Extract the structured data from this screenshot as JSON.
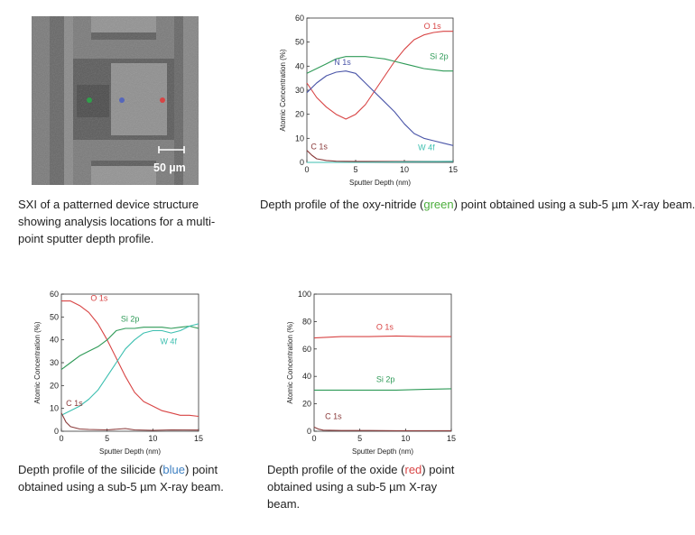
{
  "sxi_image": {
    "scale_label": "50 µm",
    "caption": "SXI of a patterned device structure showing analysis locations for a multi-point sputter depth profile.",
    "points": [
      {
        "name": "green",
        "color": "#2fa04a"
      },
      {
        "name": "blue",
        "color": "#5566bb"
      },
      {
        "name": "red",
        "color": "#d84444"
      }
    ]
  },
  "captions": [
    {
      "pre": "Depth profile of the oxy-nitride (",
      "color_word": "green",
      "color": "#4cae3c",
      "post": ") point obtained using a sub-5 µm X-ray beam."
    },
    {
      "pre": "Depth profile of the silicide (",
      "color_word": "blue",
      "color": "#3d7fc1",
      "post": ") point obtained using a sub-5 µm X-ray beam."
    },
    {
      "pre": "Depth profile of the oxide (",
      "color_word": "red",
      "color": "#d84444",
      "post": ") point obtained using a sub-5 µm X-ray beam."
    }
  ],
  "chart_data": [
    {
      "type": "line",
      "xlabel": "Sputter Depth (nm)",
      "ylabel": "Atomic Concentration (%)",
      "xlim": [
        0,
        15
      ],
      "ylim": [
        0,
        60
      ],
      "xticks": [
        0,
        5,
        10,
        15
      ],
      "yticks": [
        0,
        10,
        20,
        30,
        40,
        50,
        60
      ],
      "grid": false,
      "series": [
        {
          "name": "O 1s",
          "color": "#d84444",
          "x": [
            0,
            1,
            2,
            3,
            4,
            5,
            6,
            7,
            8,
            9,
            10,
            11,
            12,
            13,
            14,
            15
          ],
          "y": [
            33,
            27,
            23,
            20,
            18,
            20,
            24,
            30,
            36,
            42,
            47,
            51,
            53,
            54,
            54.5,
            54.5
          ]
        },
        {
          "name": "Si 2p",
          "color": "#2e9a57",
          "x": [
            0,
            1,
            2,
            3,
            4,
            5,
            6,
            7,
            8,
            9,
            10,
            11,
            12,
            13,
            14,
            15
          ],
          "y": [
            37,
            39,
            41,
            43,
            44,
            44,
            44,
            43.5,
            43,
            42,
            41,
            40,
            39,
            38.5,
            38,
            38
          ]
        },
        {
          "name": "N 1s",
          "color": "#4a55a8",
          "x": [
            0,
            1,
            2,
            3,
            4,
            5,
            6,
            7,
            8,
            9,
            10,
            11,
            12,
            13,
            14,
            15
          ],
          "y": [
            29,
            33,
            36,
            37.5,
            38,
            37,
            33,
            29,
            25,
            21,
            16,
            12,
            10,
            9,
            8,
            7
          ]
        },
        {
          "name": "C 1s",
          "color": "#8a3a3a",
          "x": [
            0,
            0.5,
            1,
            2,
            3,
            5,
            8,
            10,
            12,
            15
          ],
          "y": [
            5,
            3,
            1.5,
            0.8,
            0.5,
            0.4,
            0.4,
            0.4,
            0.4,
            0.4
          ]
        },
        {
          "name": "W 4f",
          "color": "#3cbfb0",
          "x": [
            0,
            3,
            6,
            9,
            12,
            15
          ],
          "y": [
            0,
            0,
            0,
            0.2,
            0.3,
            0.4
          ]
        }
      ],
      "labels": [
        {
          "text": "O 1s",
          "x": 12,
          "y": 55.5,
          "color": "#d84444"
        },
        {
          "text": "Si 2p",
          "x": 12.6,
          "y": 43,
          "color": "#2e9a57"
        },
        {
          "text": "N 1s",
          "x": 2.8,
          "y": 40.5,
          "color": "#4a55a8"
        },
        {
          "text": "C 1s",
          "x": 0.4,
          "y": 5.5,
          "color": "#8a3a3a"
        },
        {
          "text": "W 4f",
          "x": 11.4,
          "y": 5,
          "color": "#3cbfb0"
        }
      ]
    },
    {
      "type": "line",
      "xlabel": "Sputter Depth (nm)",
      "ylabel": "Atomic Concentration (%)",
      "xlim": [
        0,
        15
      ],
      "ylim": [
        0,
        60
      ],
      "xticks": [
        0,
        5,
        10,
        15
      ],
      "yticks": [
        0,
        10,
        20,
        30,
        40,
        50,
        60
      ],
      "grid": false,
      "series": [
        {
          "name": "O 1s",
          "color": "#d84444",
          "x": [
            0,
            1,
            2,
            3,
            4,
            5,
            6,
            7,
            8,
            9,
            10,
            11,
            12,
            13,
            14,
            15
          ],
          "y": [
            57,
            57,
            55,
            52,
            47,
            40,
            32,
            24,
            17,
            13,
            11,
            9,
            8,
            7,
            7,
            6.5
          ]
        },
        {
          "name": "Si 2p",
          "color": "#2e9a57",
          "x": [
            0,
            1,
            2,
            3,
            4,
            5,
            6,
            7,
            8,
            9,
            10,
            11,
            12,
            13,
            14,
            15
          ],
          "y": [
            27,
            30,
            33,
            35,
            37,
            40,
            44,
            45,
            45,
            45.5,
            45.5,
            45.5,
            45,
            45.5,
            46,
            45
          ]
        },
        {
          "name": "W 4f",
          "color": "#3cbfb0",
          "x": [
            0,
            1,
            2,
            3,
            4,
            5,
            6,
            7,
            8,
            9,
            10,
            11,
            12,
            13,
            14,
            15
          ],
          "y": [
            7,
            9,
            11,
            14,
            18,
            24,
            30,
            36,
            40,
            43,
            44,
            44,
            43,
            44,
            46,
            47
          ]
        },
        {
          "name": "C 1s",
          "color": "#8a3a3a",
          "x": [
            0,
            0.5,
            1,
            2,
            3,
            5,
            7,
            8,
            10,
            12,
            15
          ],
          "y": [
            8,
            4,
            2,
            1,
            0.8,
            0.6,
            1.2,
            0.6,
            0.4,
            0.6,
            0.5
          ]
        }
      ],
      "labels": [
        {
          "text": "O 1s",
          "x": 3.2,
          "y": 57,
          "color": "#d84444"
        },
        {
          "text": "Si 2p",
          "x": 6.5,
          "y": 48,
          "color": "#2e9a57"
        },
        {
          "text": "W 4f",
          "x": 10.8,
          "y": 38,
          "color": "#3cbfb0"
        },
        {
          "text": "C 1s",
          "x": 0.5,
          "y": 11,
          "color": "#8a3a3a"
        }
      ]
    },
    {
      "type": "line",
      "xlabel": "Sputter Depth (nm)",
      "ylabel": "Atomic Concentration (%)",
      "xlim": [
        0,
        15
      ],
      "ylim": [
        0,
        100
      ],
      "xticks": [
        0,
        5,
        10,
        15
      ],
      "yticks": [
        0,
        20,
        40,
        60,
        80,
        100
      ],
      "grid": false,
      "series": [
        {
          "name": "O 1s",
          "color": "#d84444",
          "x": [
            0,
            3,
            6,
            9,
            12,
            15
          ],
          "y": [
            68,
            69,
            69,
            69.5,
            69,
            69
          ]
        },
        {
          "name": "Si 2p",
          "color": "#2e9a57",
          "x": [
            0,
            3,
            6,
            9,
            12,
            15
          ],
          "y": [
            30,
            30,
            30,
            30,
            30.5,
            31
          ]
        },
        {
          "name": "C 1s",
          "color": "#8a3a3a",
          "x": [
            0,
            0.5,
            1,
            3,
            6,
            9,
            12,
            15
          ],
          "y": [
            3,
            1.5,
            0.8,
            0.5,
            0.5,
            0.4,
            0.4,
            0.4
          ]
        }
      ],
      "labels": [
        {
          "text": "O 1s",
          "x": 6.8,
          "y": 74,
          "color": "#d84444"
        },
        {
          "text": "Si 2p",
          "x": 6.8,
          "y": 36,
          "color": "#2e9a57"
        },
        {
          "text": "C 1s",
          "x": 1.2,
          "y": 9,
          "color": "#8a3a3a"
        }
      ]
    }
  ]
}
